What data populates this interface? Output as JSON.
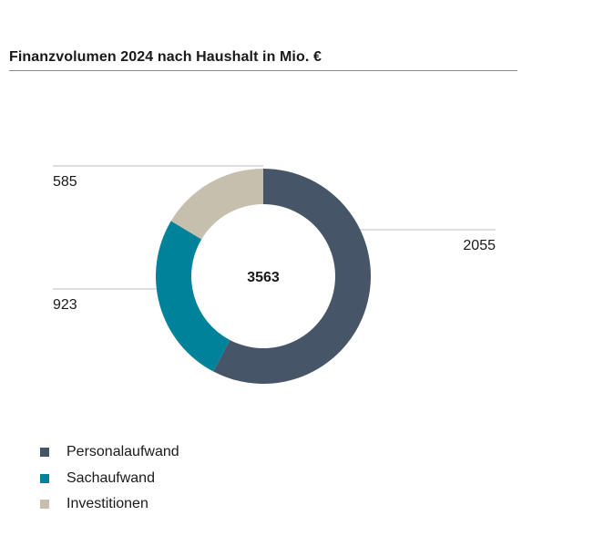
{
  "title": "Finanzvolumen 2024 nach Haushalt in Mio. €",
  "chart_data": {
    "type": "pie",
    "variant": "donut",
    "title": "Finanzvolumen 2024 nach Haushalt in Mio. €",
    "total": 3563,
    "total_label": "3563",
    "slices": [
      {
        "name": "Personalaufwand",
        "value": 2055,
        "label": "2055",
        "color": "#465668"
      },
      {
        "name": "Sachaufwand",
        "value": 923,
        "label": "923",
        "color": "#00829a"
      },
      {
        "name": "Investitionen",
        "value": 585,
        "label": "585",
        "color": "#c6bfae"
      }
    ],
    "legend_position": "bottom-left"
  }
}
